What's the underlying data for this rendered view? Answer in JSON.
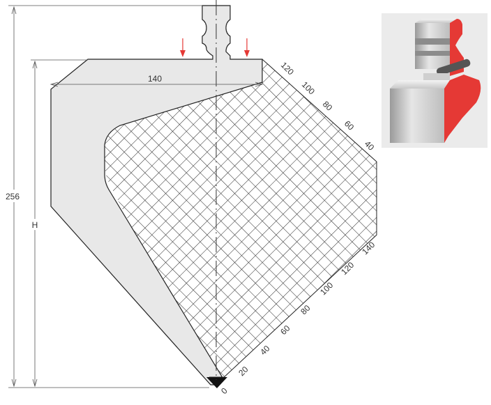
{
  "drawing": {
    "dimensions": {
      "total_height": "256",
      "working_height": "H",
      "width": "140"
    },
    "scale_top": [
      "120",
      "100",
      "80",
      "60",
      "40"
    ],
    "scale_bottom": [
      "0",
      "20",
      "40",
      "60",
      "80",
      "100",
      "120",
      "140"
    ]
  },
  "thumbnail": {
    "icon": "punch-tool-3d-render"
  },
  "colors": {
    "tool_fill": "#e8e8e8",
    "outline": "#222222",
    "force_arrow": "#e53935",
    "section_red": "#e53935"
  }
}
